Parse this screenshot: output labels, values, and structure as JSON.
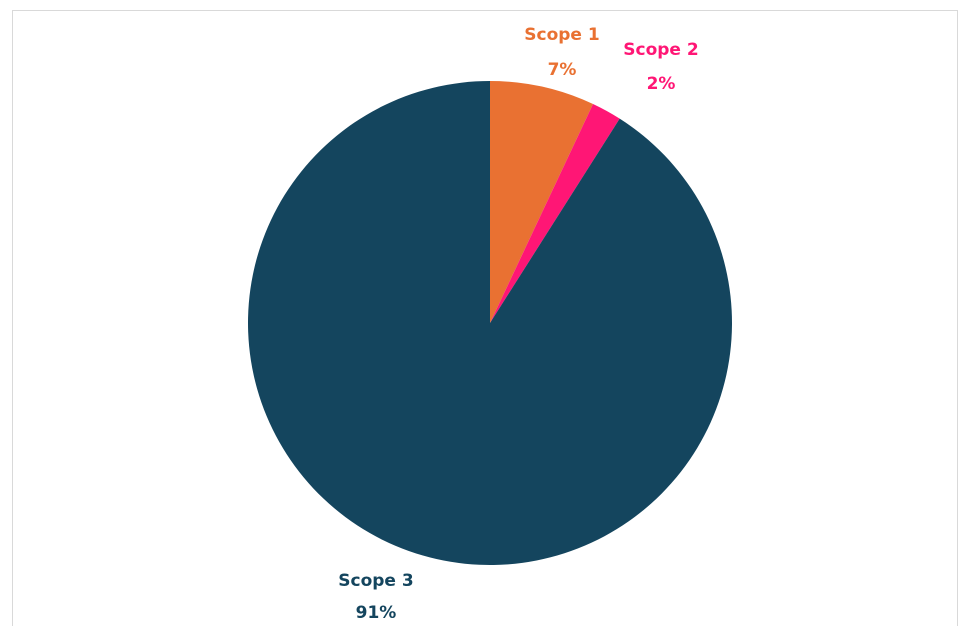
{
  "chart_data": {
    "type": "pie",
    "categories": [
      "Scope 1",
      "Scope 2",
      "Scope 3"
    ],
    "values": [
      7,
      2,
      91
    ],
    "value_labels": [
      "7%",
      "2%",
      "91%"
    ],
    "colors": [
      "#e97132",
      "#ff1675",
      "#14455e"
    ],
    "start_angle_deg": 0,
    "direction": "clockwise",
    "legend": "none",
    "title": ""
  }
}
